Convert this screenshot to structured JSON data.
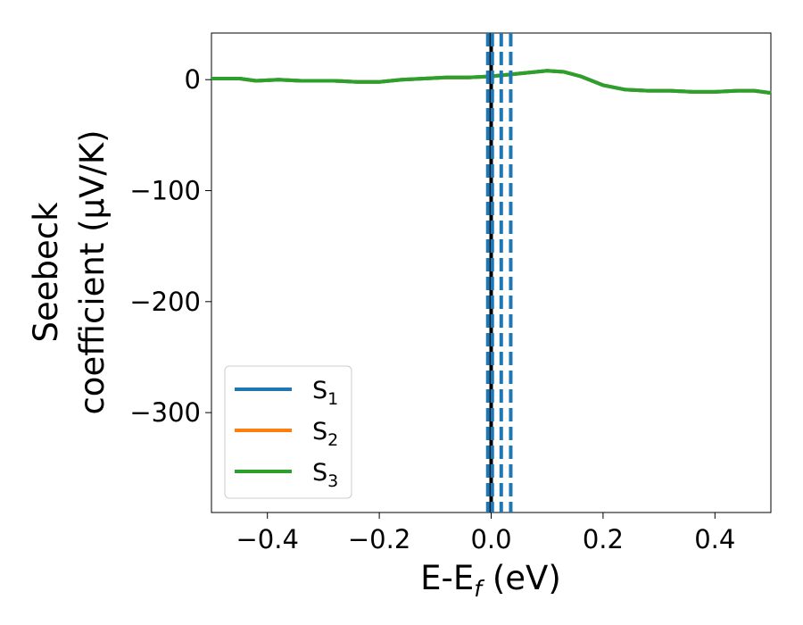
{
  "chart_data": {
    "type": "line",
    "xlabel_main": "E-E",
    "xlabel_sub": "f",
    "xlabel_unit": " (eV)",
    "ylabel_line1": "Seebeck",
    "ylabel_line2": "coefficient  (μV/K)",
    "xlim": [
      -0.5,
      0.5
    ],
    "ylim": [
      -390,
      42
    ],
    "x_ticks": [
      -0.4,
      -0.2,
      0.0,
      0.2,
      0.4
    ],
    "x_tick_labels": [
      "−0.4",
      "−0.2",
      "0.0",
      "0.2",
      "0.4"
    ],
    "y_ticks": [
      0,
      -100,
      -200,
      -300
    ],
    "y_tick_labels": [
      "0",
      "−100",
      "−200",
      "−300"
    ],
    "grid": false,
    "legend_placement": "lower-left",
    "series": [
      {
        "name_base": "S",
        "name_sub": "1",
        "color": "#1f77b4",
        "points": [
          [
            -0.5,
            1
          ],
          [
            -0.45,
            1
          ],
          [
            -0.42,
            -1
          ],
          [
            -0.38,
            0
          ],
          [
            -0.34,
            -1
          ],
          [
            -0.3,
            -1
          ],
          [
            -0.28,
            -1
          ],
          [
            -0.24,
            -2
          ],
          [
            -0.2,
            -2
          ],
          [
            -0.16,
            0
          ],
          [
            -0.12,
            1
          ],
          [
            -0.08,
            2
          ],
          [
            -0.04,
            2
          ],
          [
            0.0,
            3
          ],
          [
            0.04,
            5
          ],
          [
            0.08,
            7
          ],
          [
            0.1,
            8
          ],
          [
            0.13,
            7
          ],
          [
            0.16,
            3
          ],
          [
            0.2,
            -5
          ],
          [
            0.24,
            -9
          ],
          [
            0.28,
            -10
          ],
          [
            0.32,
            -10
          ],
          [
            0.36,
            -11
          ],
          [
            0.4,
            -11
          ],
          [
            0.44,
            -10
          ],
          [
            0.47,
            -10
          ],
          [
            0.5,
            -12
          ]
        ]
      },
      {
        "name_base": "S",
        "name_sub": "2",
        "color": "#ff7f0e",
        "points": [
          [
            -0.5,
            1
          ],
          [
            -0.45,
            1
          ],
          [
            -0.42,
            -1
          ],
          [
            -0.38,
            0
          ],
          [
            -0.34,
            -1
          ],
          [
            -0.3,
            -1
          ],
          [
            -0.28,
            -1
          ],
          [
            -0.24,
            -2
          ],
          [
            -0.2,
            -2
          ],
          [
            -0.16,
            0
          ],
          [
            -0.12,
            1
          ],
          [
            -0.08,
            2
          ],
          [
            -0.04,
            2
          ],
          [
            0.0,
            3
          ],
          [
            0.04,
            5
          ],
          [
            0.08,
            7
          ],
          [
            0.1,
            8
          ],
          [
            0.13,
            7
          ],
          [
            0.16,
            3
          ],
          [
            0.2,
            -5
          ],
          [
            0.24,
            -9
          ],
          [
            0.28,
            -10
          ],
          [
            0.32,
            -10
          ],
          [
            0.36,
            -11
          ],
          [
            0.4,
            -11
          ],
          [
            0.44,
            -10
          ],
          [
            0.47,
            -10
          ],
          [
            0.5,
            -12
          ]
        ]
      },
      {
        "name_base": "S",
        "name_sub": "3",
        "color": "#2ca02c",
        "points": [
          [
            -0.5,
            1
          ],
          [
            -0.45,
            1
          ],
          [
            -0.42,
            -1
          ],
          [
            -0.38,
            0
          ],
          [
            -0.34,
            -1
          ],
          [
            -0.3,
            -1
          ],
          [
            -0.28,
            -1
          ],
          [
            -0.24,
            -2
          ],
          [
            -0.2,
            -2
          ],
          [
            -0.16,
            0
          ],
          [
            -0.12,
            1
          ],
          [
            -0.08,
            2
          ],
          [
            -0.04,
            2
          ],
          [
            0.0,
            3
          ],
          [
            0.04,
            5
          ],
          [
            0.08,
            7
          ],
          [
            0.1,
            8
          ],
          [
            0.13,
            7
          ],
          [
            0.16,
            3
          ],
          [
            0.2,
            -5
          ],
          [
            0.24,
            -9
          ],
          [
            0.28,
            -10
          ],
          [
            0.32,
            -10
          ],
          [
            0.36,
            -11
          ],
          [
            0.4,
            -11
          ],
          [
            0.44,
            -10
          ],
          [
            0.47,
            -10
          ],
          [
            0.5,
            -12
          ]
        ]
      }
    ],
    "vlines": [
      {
        "x": 0.0,
        "style": "solid",
        "color": "#000000"
      },
      {
        "x": -0.006,
        "style": "dashed",
        "color": "#1f77b4"
      },
      {
        "x": 0.002,
        "style": "dashed",
        "color": "#1f77b4"
      },
      {
        "x": 0.018,
        "style": "dashed",
        "color": "#1f77b4"
      },
      {
        "x": 0.035,
        "style": "dashed",
        "color": "#1f77b4"
      }
    ]
  }
}
